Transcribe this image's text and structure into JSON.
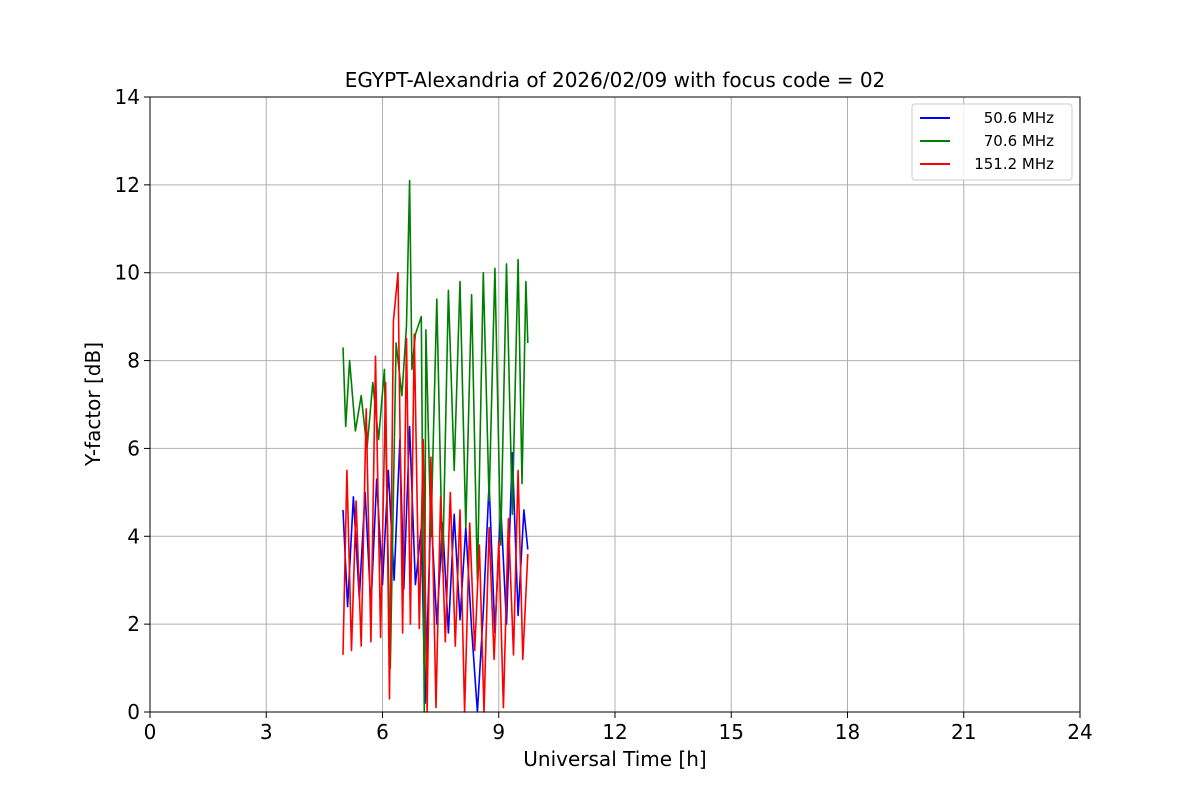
{
  "chart_data": {
    "type": "line",
    "title": "EGYPT-Alexandria of 2026/02/09 with focus code = 02",
    "xlabel": "Universal Time [h]",
    "ylabel": "Y-factor [dB]",
    "xlim": [
      0,
      24
    ],
    "ylim": [
      0,
      14
    ],
    "xticks": [
      "0",
      "3",
      "6",
      "9",
      "12",
      "15",
      "18",
      "21",
      "24"
    ],
    "yticks": [
      "0",
      "2",
      "4",
      "6",
      "8",
      "10",
      "12",
      "14"
    ],
    "grid": true,
    "legend_position": "top-right",
    "series": [
      {
        "name": "50.6 MHz",
        "color": "#0000ff",
        "x": [
          4.98,
          5.1,
          5.25,
          5.4,
          5.55,
          5.7,
          5.85,
          6.0,
          6.15,
          6.3,
          6.45,
          6.55,
          6.7,
          6.85,
          7.0,
          7.1,
          7.25,
          7.4,
          7.55,
          7.7,
          7.85,
          8.0,
          8.15,
          8.3,
          8.45,
          8.6,
          8.75,
          8.9,
          9.05,
          9.2,
          9.35,
          9.5,
          9.65,
          9.75
        ],
        "y": [
          4.6,
          2.4,
          4.9,
          2.6,
          5.0,
          2.4,
          5.3,
          2.9,
          5.5,
          3.0,
          6.2,
          2.8,
          6.5,
          2.9,
          4.2,
          0.2,
          4.6,
          2.0,
          4.3,
          1.8,
          4.5,
          2.1,
          4.2,
          1.9,
          0.0,
          2.3,
          5.2,
          1.8,
          4.7,
          2.0,
          5.9,
          2.2,
          4.6,
          3.7
        ]
      },
      {
        "name": "70.6 MHz",
        "color": "#008000",
        "x": [
          4.98,
          5.05,
          5.15,
          5.3,
          5.45,
          5.6,
          5.75,
          5.9,
          6.05,
          6.2,
          6.35,
          6.5,
          6.62,
          6.7,
          6.76,
          6.85,
          7.0,
          7.08,
          7.12,
          7.25,
          7.4,
          7.55,
          7.7,
          7.85,
          8.0,
          8.15,
          8.3,
          8.45,
          8.6,
          8.75,
          8.9,
          9.05,
          9.2,
          9.35,
          9.5,
          9.6,
          9.7,
          9.75
        ],
        "y": [
          8.3,
          6.5,
          8.0,
          6.4,
          7.2,
          6.0,
          7.5,
          6.2,
          7.8,
          1.0,
          8.4,
          7.2,
          8.8,
          12.1,
          7.8,
          8.6,
          9.0,
          0.0,
          8.7,
          4.0,
          9.4,
          3.2,
          9.6,
          5.5,
          9.8,
          4.2,
          9.5,
          3.0,
          10.0,
          4.8,
          10.1,
          3.8,
          10.2,
          4.5,
          10.3,
          5.2,
          9.8,
          8.4
        ]
      },
      {
        "name": "151.2 MHz",
        "color": "#ff0000",
        "x": [
          4.98,
          5.08,
          5.2,
          5.32,
          5.45,
          5.58,
          5.7,
          5.82,
          5.95,
          6.08,
          6.18,
          6.28,
          6.4,
          6.52,
          6.62,
          6.72,
          6.82,
          6.95,
          7.05,
          7.15,
          7.25,
          7.38,
          7.5,
          7.62,
          7.75,
          7.88,
          8.0,
          8.12,
          8.25,
          8.38,
          8.5,
          8.62,
          8.75,
          8.88,
          9.0,
          9.12,
          9.25,
          9.38,
          9.5,
          9.62,
          9.75
        ],
        "y": [
          1.3,
          5.5,
          1.4,
          4.8,
          1.5,
          6.9,
          1.6,
          8.1,
          1.7,
          7.5,
          0.3,
          8.9,
          10.0,
          1.8,
          8.5,
          2.0,
          8.6,
          1.9,
          6.2,
          0.0,
          5.8,
          0.1,
          4.9,
          1.6,
          5.0,
          1.5,
          4.6,
          0.0,
          4.3,
          1.4,
          3.8,
          0.0,
          4.2,
          1.2,
          3.9,
          0.1,
          4.4,
          1.3,
          5.5,
          1.2,
          3.6
        ]
      }
    ]
  }
}
